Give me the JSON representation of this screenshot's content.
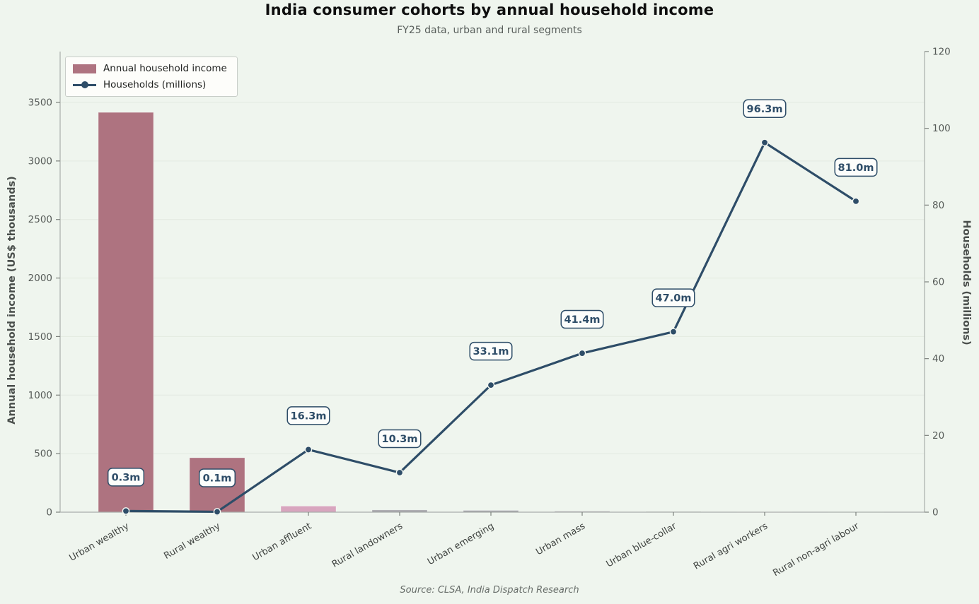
{
  "page": {
    "title": "India consumer cohorts by annual household income",
    "subtitle": "FY25 data, urban and rural segments",
    "source": "Source: CLSA, India Dispatch Research"
  },
  "legend": {
    "items": [
      {
        "label": "Annual household income",
        "swatch": "bar"
      },
      {
        "label": "Households (millions)",
        "swatch": "line-dot"
      }
    ]
  },
  "chart_data": {
    "type": "bar+line dual-axis",
    "categories": [
      "Urban wealthy",
      "Rural wealthy",
      "Urban affluent",
      "Rural landowners",
      "Urban emerging",
      "Urban mass",
      "Urban blue-collar",
      "Rural agri workers",
      "Rural non-agri labour"
    ],
    "series": [
      {
        "name": "Annual household income",
        "type": "bar",
        "axis": "left",
        "values": [
          3415,
          465,
          52,
          19,
          15,
          8,
          5,
          3,
          2
        ],
        "bar_colors": [
          "#ae7380",
          "#ae7380",
          "#d8a5be",
          "#a5a5aa",
          "#a5a5aa",
          "#a5a5aa",
          "#a5a5aa",
          "#a5a5aa",
          "#a5a5aa"
        ]
      },
      {
        "name": "Households (millions)",
        "type": "line",
        "axis": "right",
        "values": [
          0.3,
          0.1,
          16.3,
          10.3,
          33.1,
          41.4,
          47.0,
          96.3,
          81.0
        ],
        "point_labels": [
          "0.3m",
          "0.1m",
          "16.3m",
          "10.3m",
          "33.1m",
          "41.4m",
          "47.0m",
          "96.3m",
          "81.0m"
        ],
        "color": "#2e4d68"
      }
    ],
    "title": "India consumer cohorts by annual household income",
    "subtitle": "FY25 data, urban and rural segments",
    "xlabel": "",
    "ylabel_left": "Annual household income (US$ thousands)",
    "ylabel_right": "Households (millions)",
    "yticks_left": [
      0,
      500,
      1000,
      1500,
      2000,
      2500,
      3000,
      3500
    ],
    "yticks_right": [
      0,
      20,
      40,
      60,
      80,
      100,
      120
    ],
    "ylim_left": [
      0,
      3500
    ],
    "ylim_right": [
      0,
      120
    ],
    "grid": true,
    "legend_position": "upper-left",
    "x_tick_rotation_deg": 30,
    "colors": {
      "background": "#eff5ee",
      "bar_dark_mauve": "#ae7380",
      "bar_pink": "#d8a5be",
      "bar_gray": "#a5a5aa",
      "line": "#2e4d68",
      "grid": "#e3eae1",
      "spine": "#a9aeaa",
      "tick_label": "#565b58",
      "annotation_box_fill": "#fcfdfb"
    }
  }
}
